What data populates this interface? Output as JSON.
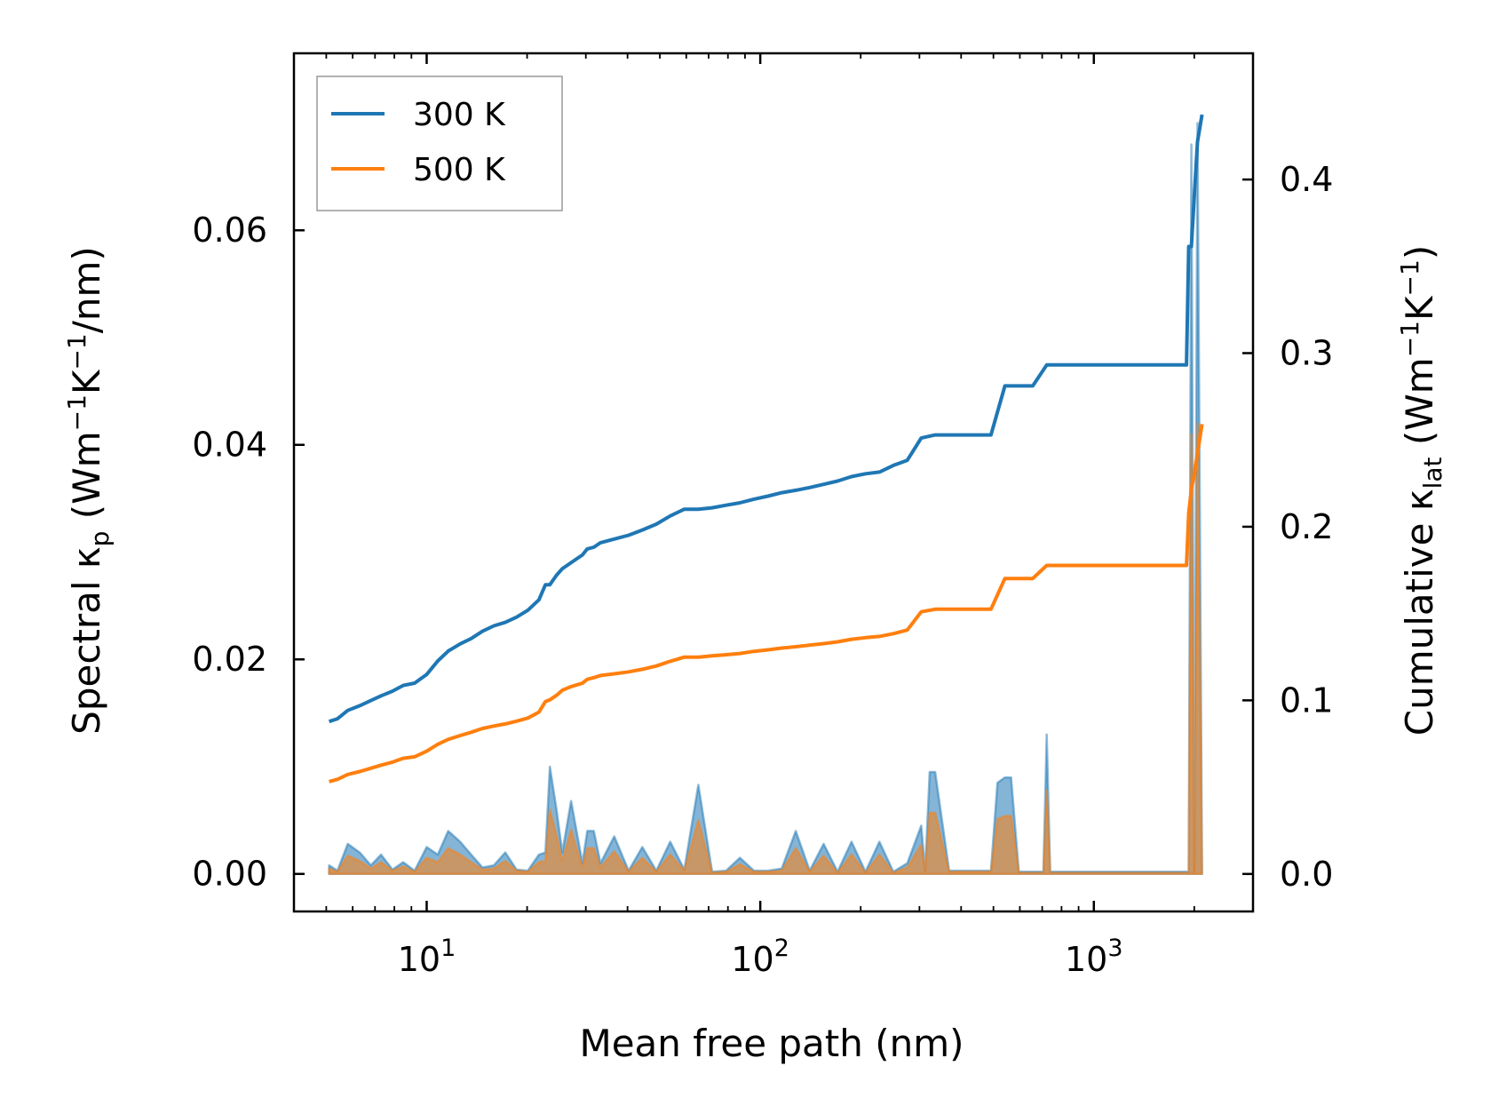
{
  "chart_data": {
    "type": "line",
    "xlabel": "Mean free path (nm)",
    "ylabel_left": {
      "main": "Spectral κ",
      "sub": "p",
      "unit_pre": " (Wm",
      "exp1": "−1",
      "unit_mid": "K",
      "exp2": "−1",
      "unit_post": "/nm)"
    },
    "ylabel_right": {
      "main": "Cumulative κ",
      "sub": "lat",
      "unit_pre": " (Wm",
      "exp1": "−1",
      "unit_mid": "K",
      "exp2": "−1",
      "unit_post": ")"
    },
    "x_scale": "log",
    "xlim": [
      4,
      3000
    ],
    "ylim_left": [
      -0.0035,
      0.0765
    ],
    "ylim_right": [
      -0.0216,
      0.4727
    ],
    "x_ticks": [
      {
        "base": "10",
        "exp": "1",
        "value": 10
      },
      {
        "base": "10",
        "exp": "2",
        "value": 100
      },
      {
        "base": "10",
        "exp": "3",
        "value": 1000
      }
    ],
    "y_ticks_left": [
      "0.00",
      "0.02",
      "0.04",
      "0.06"
    ],
    "y_ticks_left_values": [
      0,
      0.02,
      0.04,
      0.06
    ],
    "y_ticks_right": [
      "0.0",
      "0.1",
      "0.2",
      "0.3",
      "0.4"
    ],
    "y_ticks_right_values": [
      0,
      0.1,
      0.2,
      0.3,
      0.4
    ],
    "legend": {
      "position": "top-left",
      "entries": [
        {
          "label": "300 K",
          "color": "#1f77b4"
        },
        {
          "label": "500 K",
          "color": "#ff7f0e"
        }
      ]
    },
    "series_cumulative": [
      {
        "name": "300 K",
        "color": "#1f77b4",
        "x": [
          5.1,
          5.4,
          5.8,
          6.3,
          6.8,
          7.3,
          7.9,
          8.5,
          9.2,
          10,
          10.8,
          11.6,
          12.6,
          13.6,
          14.7,
          15.9,
          17.2,
          18.6,
          20.1,
          21.7,
          22.7,
          23.4,
          24.5,
          25.5,
          27.1,
          29.3,
          30.3,
          31.7,
          33.2,
          36.5,
          40.3,
          44.3,
          48.8,
          53.7,
          59.2,
          65.2,
          71.7,
          79,
          86.9,
          95.7,
          105.4,
          116,
          127.8,
          140.7,
          154.9,
          170.5,
          187.8,
          206.7,
          227.6,
          250.6,
          275.9,
          303.8,
          334.5,
          368.3,
          405.5,
          446.5,
          491.6,
          541.3,
          596,
          656.2,
          722.5,
          795.5,
          1000,
          1500,
          1895,
          1925,
          1960,
          2000,
          2045,
          2110
        ],
        "y": [
          0.0878,
          0.0894,
          0.0942,
          0.0969,
          0.0999,
          0.1026,
          0.1053,
          0.1086,
          0.1099,
          0.1149,
          0.1227,
          0.1284,
          0.1325,
          0.1356,
          0.1398,
          0.1429,
          0.1449,
          0.1479,
          0.1519,
          0.1579,
          0.1666,
          0.1666,
          0.1721,
          0.1758,
          0.1793,
          0.1838,
          0.1872,
          0.1882,
          0.1908,
          0.1929,
          0.1951,
          0.1981,
          0.2015,
          0.2062,
          0.2101,
          0.2101,
          0.2109,
          0.2124,
          0.2138,
          0.2159,
          0.2176,
          0.2196,
          0.221,
          0.2226,
          0.2244,
          0.2263,
          0.2289,
          0.2305,
          0.2315,
          0.2353,
          0.2383,
          0.2511,
          0.2529,
          0.2529,
          0.2529,
          0.2529,
          0.2529,
          0.2811,
          0.2811,
          0.2811,
          0.2932,
          0.2932,
          0.2932,
          0.2932,
          0.2932,
          0.3614,
          0.3614,
          0.3907,
          0.4218,
          0.4374
        ]
      },
      {
        "name": "500 K",
        "color": "#ff7f0e",
        "x": [
          5.1,
          5.4,
          5.8,
          6.3,
          6.8,
          7.3,
          7.9,
          8.5,
          9.2,
          10,
          10.8,
          11.6,
          12.6,
          13.6,
          14.7,
          15.9,
          17.2,
          18.6,
          20.1,
          21.7,
          22.7,
          23.4,
          24.5,
          25.5,
          27.1,
          29.3,
          30.3,
          31.7,
          33.2,
          36.5,
          40.3,
          44.3,
          48.8,
          53.7,
          59.2,
          65.2,
          71.7,
          79,
          86.9,
          95.7,
          105.4,
          116,
          127.8,
          140.7,
          154.9,
          170.5,
          187.8,
          206.7,
          227.6,
          250.6,
          275.9,
          303.8,
          334.5,
          368.3,
          405.5,
          446.5,
          491.6,
          541.3,
          596,
          656.2,
          722.5,
          795.5,
          1000,
          1500,
          1895,
          1925,
          1960,
          2000,
          2045,
          2110
        ],
        "y": [
          0.0532,
          0.0545,
          0.0573,
          0.059,
          0.0609,
          0.0627,
          0.0644,
          0.0666,
          0.0675,
          0.0707,
          0.0747,
          0.0775,
          0.0797,
          0.0816,
          0.0838,
          0.0852,
          0.0864,
          0.088,
          0.0898,
          0.0932,
          0.0993,
          0.1003,
          0.1029,
          0.1058,
          0.1079,
          0.1099,
          0.1121,
          0.1131,
          0.1143,
          0.1153,
          0.1164,
          0.1179,
          0.1198,
          0.1225,
          0.1249,
          0.1249,
          0.1256,
          0.1263,
          0.127,
          0.1282,
          0.1291,
          0.1301,
          0.1309,
          0.1318,
          0.1327,
          0.1337,
          0.1352,
          0.1361,
          0.1368,
          0.1384,
          0.1405,
          0.151,
          0.1525,
          0.1525,
          0.1525,
          0.1525,
          0.1525,
          0.1702,
          0.1702,
          0.1702,
          0.1777,
          0.1777,
          0.1777,
          0.1777,
          0.1777,
          0.2079,
          0.2214,
          0.2306,
          0.2424,
          0.2591
        ]
      }
    ],
    "series_spectral": [
      {
        "name": "300 K",
        "color": "#1f77b4",
        "x": [
          5.1,
          5.4,
          5.8,
          6.3,
          6.8,
          7.3,
          7.9,
          8.5,
          9.2,
          10,
          10.8,
          11.6,
          12.6,
          13.6,
          14.7,
          15.9,
          17.2,
          18.6,
          20.1,
          21.7,
          22.7,
          23.4,
          24.5,
          25.5,
          27.1,
          29.3,
          30.3,
          31.7,
          33.2,
          36.5,
          40.3,
          44.3,
          48.8,
          53.7,
          59.2,
          65.2,
          71.7,
          79,
          86.9,
          95.7,
          105.4,
          116,
          127.8,
          140.7,
          154.9,
          170.5,
          187.8,
          206.7,
          227.6,
          250.6,
          275.9,
          303.8,
          312,
          322,
          334.5,
          368.3,
          405.5,
          446.5,
          491.6,
          514,
          541.3,
          565,
          596,
          656.2,
          706,
          722.5,
          740,
          795.5,
          1000,
          1500,
          1895,
          1925,
          1960,
          2000,
          2045,
          2110
        ],
        "y": [
          0.0008,
          0.0003,
          0.0028,
          0.002,
          0.0008,
          0.0018,
          0.0004,
          0.0011,
          0.0003,
          0.0025,
          0.0018,
          0.004,
          0.003,
          0.0018,
          0.0006,
          0.0008,
          0.002,
          0.0004,
          0.0003,
          0.0018,
          0.002,
          0.01,
          0.006,
          0.002,
          0.0068,
          0.001,
          0.004,
          0.004,
          0.001,
          0.0035,
          0.0003,
          0.0025,
          0.0003,
          0.003,
          0.0004,
          0.0083,
          0.0002,
          0.0003,
          0.0015,
          0.0003,
          0.0003,
          0.0005,
          0.004,
          0.0003,
          0.0028,
          0.0002,
          0.003,
          0.0002,
          0.003,
          0.0002,
          0.001,
          0.0045,
          0.0003,
          0.0095,
          0.0095,
          0.0003,
          0.0003,
          0.0003,
          0.0003,
          0.0085,
          0.009,
          0.009,
          0.0002,
          0.0002,
          0.0002,
          0.013,
          0.0002,
          0.0002,
          0.0002,
          0.0002,
          0.0002,
          0.0002,
          0.068,
          0.0002,
          0.07,
          0.0002
        ]
      },
      {
        "name": "500 K",
        "color": "#ff7f0e",
        "x": [
          5.1,
          5.4,
          5.8,
          6.3,
          6.8,
          7.3,
          7.9,
          8.5,
          9.2,
          10,
          10.8,
          11.6,
          12.6,
          13.6,
          14.7,
          15.9,
          17.2,
          18.6,
          20.1,
          21.7,
          22.7,
          23.4,
          24.5,
          25.5,
          27.1,
          29.3,
          30.3,
          31.7,
          33.2,
          36.5,
          40.3,
          44.3,
          48.8,
          53.7,
          59.2,
          65.2,
          71.7,
          79,
          86.9,
          95.7,
          105.4,
          116,
          127.8,
          140.7,
          154.9,
          170.5,
          187.8,
          206.7,
          227.6,
          250.6,
          275.9,
          303.8,
          312,
          322,
          334.5,
          368.3,
          405.5,
          446.5,
          491.6,
          514,
          541.3,
          565,
          596,
          656.2,
          706,
          722.5,
          740,
          795.5,
          1000,
          1500,
          1895,
          1925,
          1960,
          2000,
          2045,
          2110
        ],
        "y": [
          0.0005,
          0.0002,
          0.0017,
          0.0012,
          0.0005,
          0.0011,
          0.0003,
          0.0007,
          0.0002,
          0.0015,
          0.0011,
          0.0024,
          0.0018,
          0.0011,
          0.0004,
          0.0005,
          0.0012,
          0.0003,
          0.0002,
          0.0011,
          0.0012,
          0.006,
          0.0036,
          0.0012,
          0.0041,
          0.0006,
          0.0024,
          0.0024,
          0.0006,
          0.0021,
          0.0002,
          0.0015,
          0.0002,
          0.0018,
          0.0003,
          0.005,
          0.0001,
          0.0002,
          0.0009,
          0.0002,
          0.0002,
          0.0003,
          0.0024,
          0.0002,
          0.0017,
          0.0001,
          0.0018,
          0.0001,
          0.0018,
          0.0001,
          0.0006,
          0.0027,
          0.0002,
          0.0057,
          0.0057,
          0.0002,
          0.0002,
          0.0002,
          0.0002,
          0.0051,
          0.0054,
          0.0054,
          0.0001,
          0.0001,
          0.0001,
          0.0078,
          0.0001,
          0.0001,
          0.0001,
          0.0001,
          0.0001,
          0.0001,
          0.041,
          0.0001,
          0.042,
          0.0001
        ]
      }
    ]
  }
}
